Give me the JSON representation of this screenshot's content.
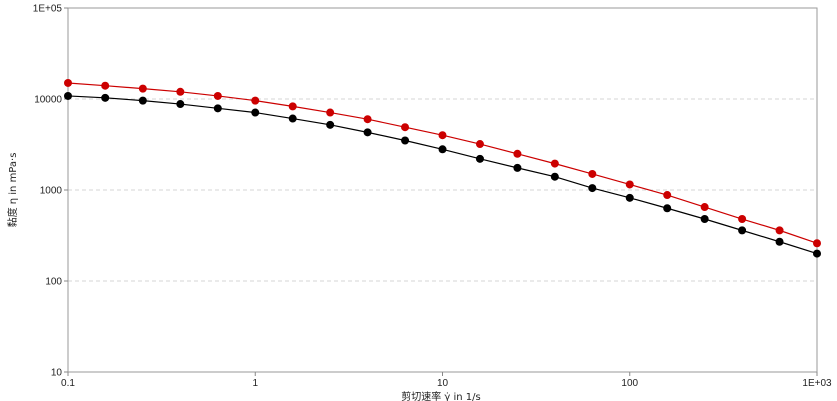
{
  "chart_data": {
    "type": "line",
    "xlabel": "剪切速率 γ̇ in 1/s",
    "ylabel": "黏度 η in mPa·s",
    "xscale": "log",
    "yscale": "log",
    "xlim": [
      0.1,
      1000
    ],
    "ylim": [
      10,
      100000
    ],
    "grid": "horizontal dashed",
    "x_ticks": [
      "0.1",
      "1",
      "10",
      "100",
      "1E+03"
    ],
    "y_ticks": [
      "10",
      "100",
      "1000",
      "10000",
      "1E+05"
    ],
    "x": [
      0.1,
      0.158,
      0.251,
      0.398,
      0.631,
      1,
      1.585,
      2.512,
      3.981,
      6.31,
      10,
      15.85,
      25.12,
      39.81,
      63.1,
      100,
      158.5,
      251.2,
      398.1,
      631,
      1000
    ],
    "series": [
      {
        "color": "#cc0000",
        "values": [
          15000,
          14000,
          13000,
          12000,
          10800,
          9600,
          8300,
          7100,
          6000,
          4900,
          4000,
          3200,
          2500,
          1950,
          1500,
          1150,
          880,
          650,
          480,
          360,
          260
        ]
      },
      {
        "color": "#000000",
        "values": [
          10800,
          10300,
          9600,
          8800,
          7900,
          7100,
          6100,
          5200,
          4300,
          3500,
          2800,
          2200,
          1750,
          1400,
          1050,
          820,
          630,
          480,
          360,
          270,
          200
        ]
      }
    ]
  }
}
